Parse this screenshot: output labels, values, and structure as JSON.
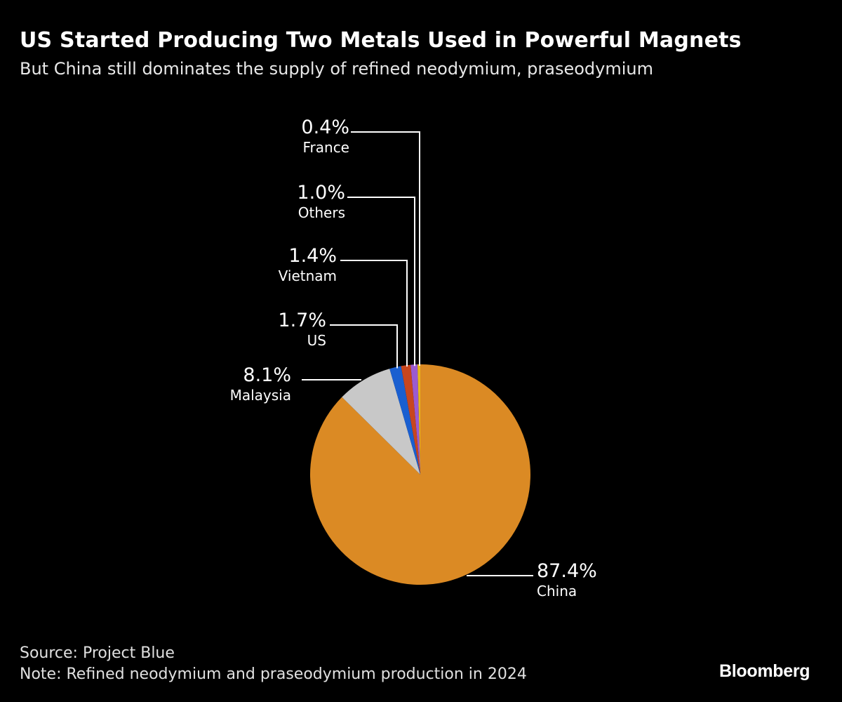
{
  "chart_data": {
    "type": "pie",
    "title": "US Started Producing Two Metals Used in Powerful Magnets",
    "subtitle": "But China still dominates the supply of refined neodymium, praseodymium",
    "slices": [
      {
        "label": "China",
        "value": 87.4,
        "display": "87.4%",
        "color": "#db8a24"
      },
      {
        "label": "Malaysia",
        "value": 8.1,
        "display": "8.1%",
        "color": "#c8c8c8"
      },
      {
        "label": "US",
        "value": 1.7,
        "display": "1.7%",
        "color": "#1a5fd0"
      },
      {
        "label": "Vietnam",
        "value": 1.4,
        "display": "1.4%",
        "color": "#c8461e"
      },
      {
        "label": "Others",
        "value": 1.0,
        "display": "1.0%",
        "color": "#9b5bd0"
      },
      {
        "label": "France",
        "value": 0.4,
        "display": "0.4%",
        "color": "#e8b818"
      }
    ],
    "start_angle": "12 o'clock",
    "direction": "clockwise"
  },
  "footer": {
    "source": "Source: Project Blue",
    "note": "Note: Refined neodymium and praseodymium production in 2024",
    "logo": "Bloomberg"
  }
}
